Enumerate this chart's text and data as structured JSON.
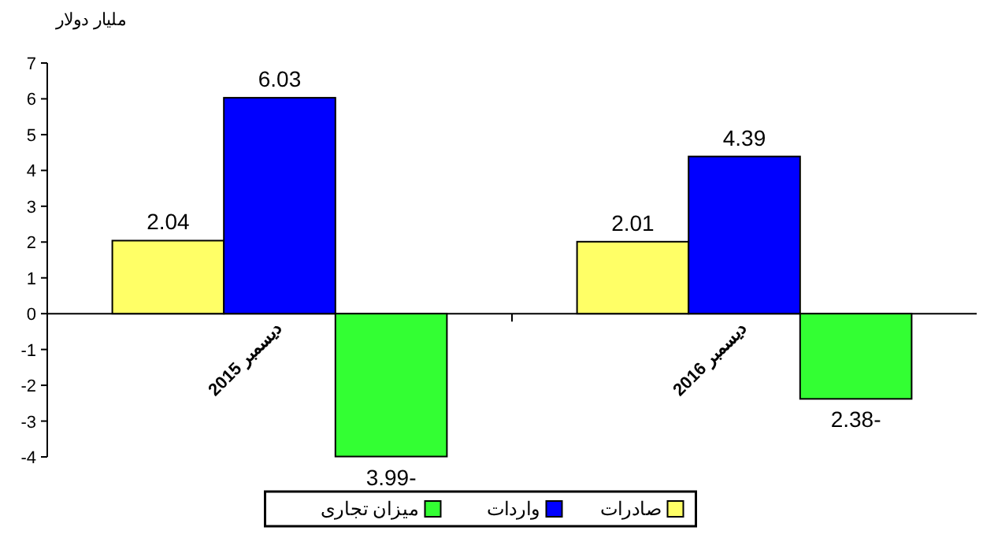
{
  "chart_data": {
    "type": "bar",
    "ylabel": "ملیار دولار",
    "categories": [
      "دیسمبر 2015",
      "دیسمبر 2016"
    ],
    "series": [
      {
        "name": "صادرات",
        "color": "#ffff66",
        "values": [
          2.04,
          2.01
        ],
        "value_labels": [
          "2.04",
          "2.01"
        ]
      },
      {
        "name": "واردات",
        "color": "#0000ff",
        "values": [
          6.03,
          4.39
        ],
        "value_labels": [
          "6.03",
          "4.39"
        ]
      },
      {
        "name": "میزان تجاری",
        "color": "#33ff33",
        "values": [
          -3.99,
          -2.38
        ],
        "value_labels": [
          "-3.99",
          "-2.38"
        ]
      }
    ],
    "ylim": [
      -4,
      7
    ],
    "yticks": [
      -4,
      -3,
      -2,
      -1,
      0,
      1,
      2,
      3,
      4,
      5,
      6,
      7
    ],
    "legend": "bottom"
  }
}
